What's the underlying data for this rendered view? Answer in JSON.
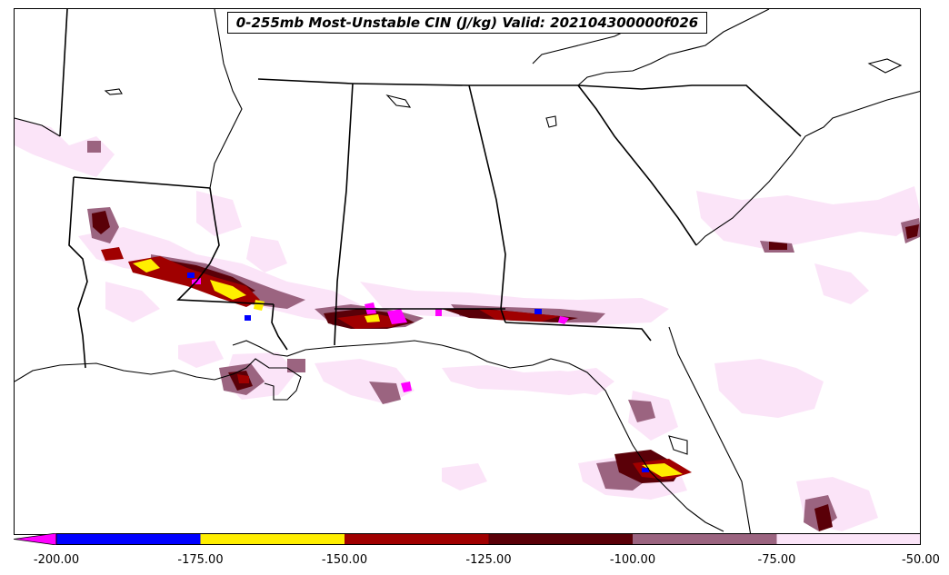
{
  "title": "0-255mb Most-Unstable CIN (J/kg) Valid: 202104300000f026",
  "colorbar": {
    "ticks": [
      "-200.00",
      "-175.00",
      "-150.00",
      "-125.00",
      "-100.00",
      "-75.00",
      "-50.00"
    ],
    "bins": [
      {
        "range": "< -200",
        "color": "#ff00ff"
      },
      {
        "range": "-200 to -175",
        "color": "#0000ff"
      },
      {
        "range": "-175 to -150",
        "color": "#ffee00"
      },
      {
        "range": "-150 to -125",
        "color": "#a00000"
      },
      {
        "range": "-125 to -100",
        "color": "#5a0008"
      },
      {
        "range": "-100 to -75",
        "color": "#9b6480"
      },
      {
        "range": "-75 to -50",
        "color": "#fbe4f8"
      }
    ]
  },
  "chart_data": {
    "type": "heatmap",
    "variable": "0-255mb Most-Unstable CIN",
    "units": "J/kg",
    "valid": "202104300000f026",
    "colorbar_range": [
      -200,
      -50
    ]
  },
  "region_icons": [
    "state-border-lines",
    "coastline"
  ]
}
